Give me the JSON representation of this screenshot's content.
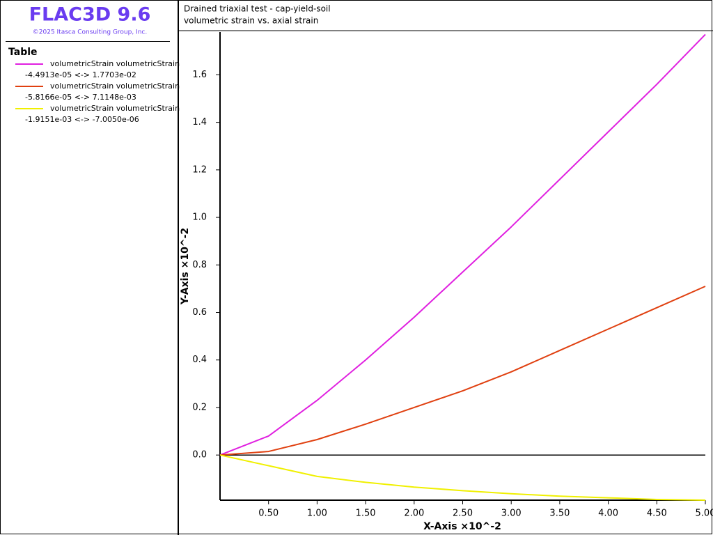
{
  "header": {
    "app_title": "FLAC3D 9.6",
    "copyright": "©2025 Itasca Consulting Group, Inc."
  },
  "chart_data": {
    "type": "line",
    "title": "Drained triaxial test - cap-yield-soil",
    "subtitle": "volumetric strain vs. axial strain",
    "legend_title": "Table",
    "x_label": "X-Axis ×10^-2",
    "y_label": "Y-Axis ×10^-2",
    "x": [
      0,
      0.5,
      1.0,
      1.5,
      2.0,
      2.5,
      3.0,
      3.5,
      4.0,
      4.5,
      5.0
    ],
    "series": [
      {
        "name": "volumetricStrain volumetricStrain",
        "range": "-4.4913e-05 <->  1.7703e-02",
        "color": "#e020e0",
        "values": [
          0,
          0.08,
          0.23,
          0.4,
          0.58,
          0.77,
          0.96,
          1.16,
          1.36,
          1.56,
          1.77
        ]
      },
      {
        "name": "volumetricStrain volumetricStrain",
        "range": "-5.8166e-05 <->  7.1148e-03",
        "color": "#e04010",
        "values": [
          0,
          0.015,
          0.065,
          0.13,
          0.2,
          0.27,
          0.35,
          0.44,
          0.53,
          0.62,
          0.71
        ]
      },
      {
        "name": "volumetricStrain volumetricStrain",
        "range": "-1.9151e-03 <-> -7.0050e-06",
        "color": "#f0f000",
        "values": [
          0,
          -0.045,
          -0.09,
          -0.115,
          -0.135,
          -0.15,
          -0.163,
          -0.173,
          -0.18,
          -0.187,
          -0.19
        ]
      }
    ],
    "xlim": [
      0,
      5.0
    ],
    "ylim": [
      -0.19,
      1.78
    ],
    "xticks": [
      {
        "value": 0.5,
        "label": "0.50"
      },
      {
        "value": 1.0,
        "label": "1.00"
      },
      {
        "value": 1.5,
        "label": "1.50"
      },
      {
        "value": 2.0,
        "label": "2.00"
      },
      {
        "value": 2.5,
        "label": "2.50"
      },
      {
        "value": 3.0,
        "label": "3.00"
      },
      {
        "value": 3.5,
        "label": "3.50"
      },
      {
        "value": 4.0,
        "label": "4.00"
      },
      {
        "value": 4.5,
        "label": "4.50"
      },
      {
        "value": 5.0,
        "label": "5.00"
      }
    ],
    "yticks": [
      {
        "value": 0,
        "label": "0.0"
      },
      0.2,
      0.4,
      0.6,
      0.8,
      {
        "value": 1,
        "label": "1.0"
      },
      1.2,
      1.4,
      1.6
    ],
    "grid": false
  }
}
